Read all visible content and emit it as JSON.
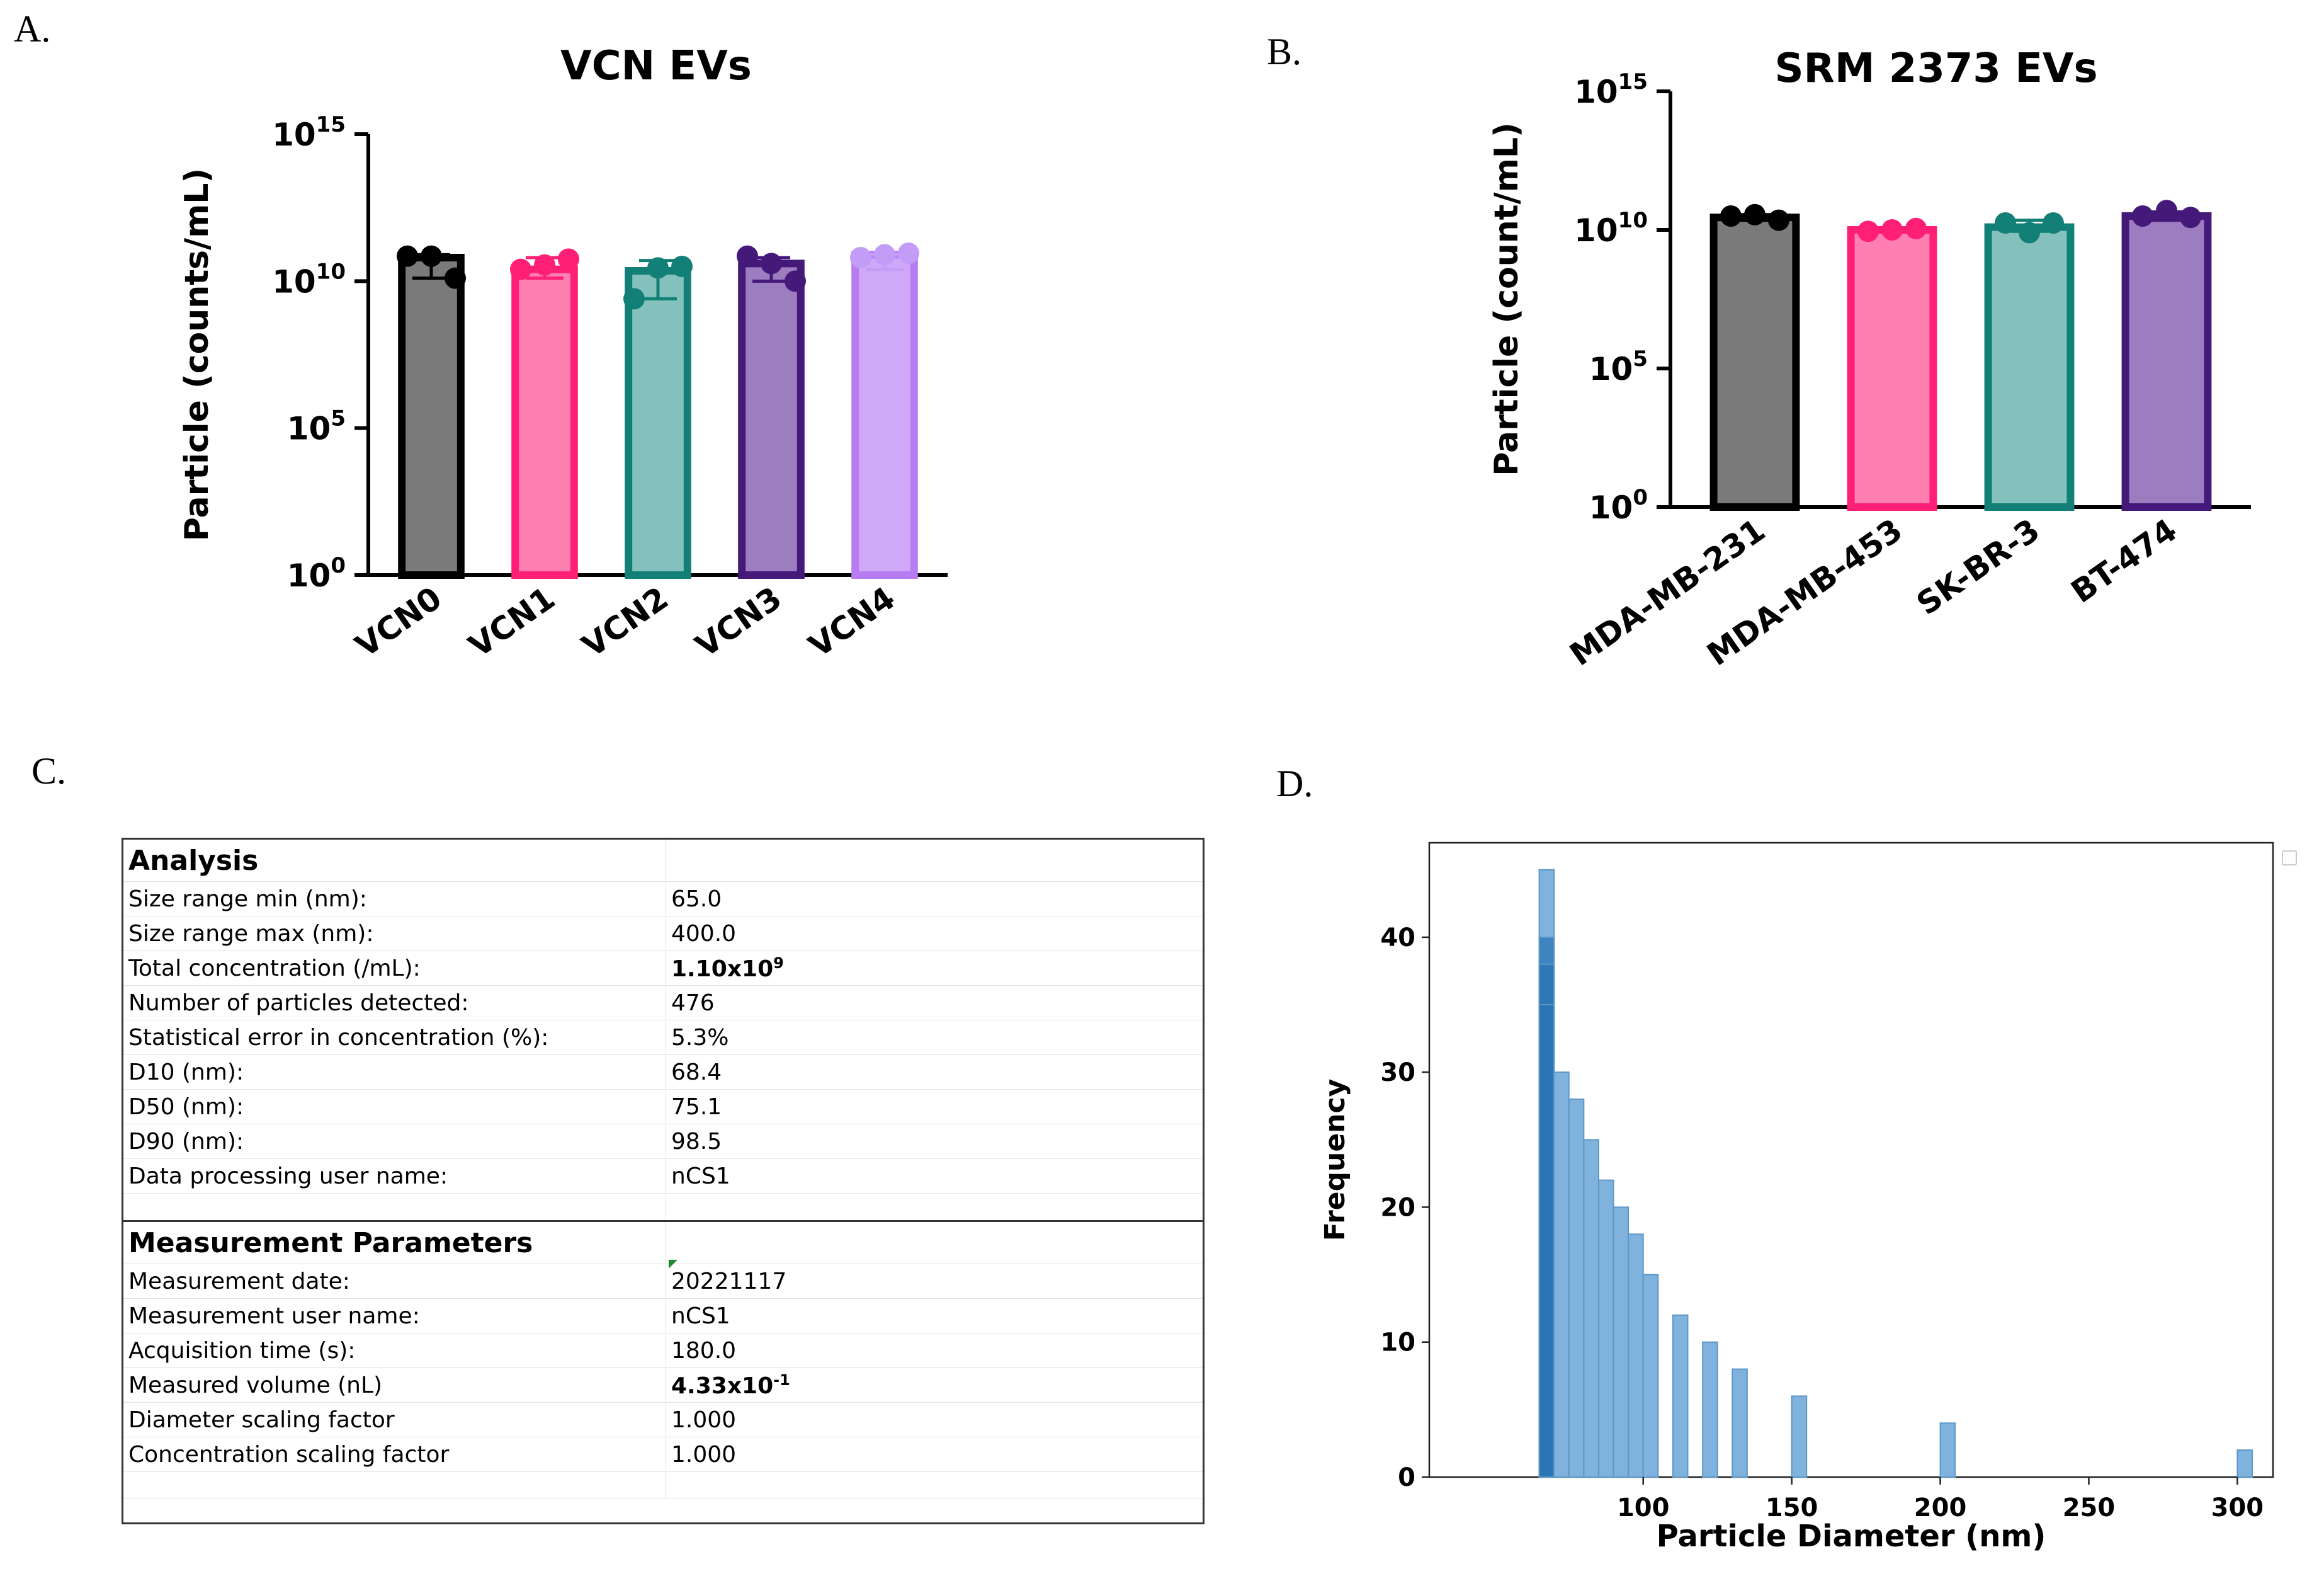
{
  "panels": {
    "a": "A.",
    "b": "B.",
    "c": "C.",
    "d": "D."
  },
  "chart_data": [
    {
      "id": "A",
      "type": "bar",
      "title": "VCN EVs",
      "ylabel": "Particle (counts/mL)",
      "yscale": "log",
      "ylim_exp": [
        0,
        15
      ],
      "yticks": [
        {
          "exp": 0,
          "base": "10",
          "sup": "0"
        },
        {
          "exp": 5,
          "base": "10",
          "sup": "5"
        },
        {
          "exp": 10,
          "base": "10",
          "sup": "10"
        },
        {
          "exp": 15,
          "base": "10",
          "sup": "15"
        }
      ],
      "categories": [
        "VCN0",
        "VCN1",
        "VCN2",
        "VCN3",
        "VCN4"
      ],
      "values_exp": [
        10.8,
        10.4,
        10.35,
        10.6,
        10.9
      ],
      "error_low_exp": [
        10.1,
        10.1,
        9.4,
        10.0,
        10.4
      ],
      "error_high_exp": [
        10.9,
        10.8,
        10.7,
        10.8,
        10.9
      ],
      "points_exp": [
        [
          10.85,
          10.85,
          10.1
        ],
        [
          10.4,
          10.55,
          10.75
        ],
        [
          9.4,
          10.45,
          10.5
        ],
        [
          10.85,
          10.6,
          10.0
        ],
        [
          10.8,
          10.9,
          10.95
        ]
      ],
      "colors": [
        "#7a7a7a",
        "#ff7fb0",
        "#84c1bd",
        "#9b7dc0",
        "#cfa8f7"
      ],
      "edge_colors": [
        "#000000",
        "#ff1f77",
        "#138078",
        "#44197a",
        "#b77cf2"
      ],
      "point_colors": [
        "#000000",
        "#ff1f77",
        "#138078",
        "#44197a",
        "#c39cf7"
      ]
    },
    {
      "id": "B",
      "type": "bar",
      "title": "SRM 2373 EVs",
      "ylabel": "Particle (count/mL)",
      "yscale": "log",
      "ylim_exp": [
        0,
        15
      ],
      "yticks": [
        {
          "exp": 0,
          "base": "10",
          "sup": "0"
        },
        {
          "exp": 5,
          "base": "10",
          "sup": "5"
        },
        {
          "exp": 10,
          "base": "10",
          "sup": "10"
        },
        {
          "exp": 15,
          "base": "10",
          "sup": "15"
        }
      ],
      "categories": [
        "MDA-MB-231",
        "MDA-MB-453",
        "SK-BR-3",
        "BT-474"
      ],
      "values_exp": [
        10.45,
        10.0,
        10.1,
        10.5
      ],
      "error_low_exp": [
        10.35,
        9.95,
        9.95,
        10.35
      ],
      "error_high_exp": [
        10.55,
        10.05,
        10.35,
        10.65
      ],
      "points_exp": [
        [
          10.5,
          10.55,
          10.35
        ],
        [
          9.95,
          10.0,
          10.05
        ],
        [
          10.25,
          9.9,
          10.25
        ],
        [
          10.5,
          10.7,
          10.45
        ]
      ],
      "colors": [
        "#7a7a7a",
        "#ff7fb0",
        "#84c1bd",
        "#9b7dc0"
      ],
      "edge_colors": [
        "#000000",
        "#ff1f77",
        "#138078",
        "#44197a"
      ],
      "point_colors": [
        "#000000",
        "#ff1f77",
        "#138078",
        "#44197a"
      ]
    },
    {
      "id": "D",
      "type": "bar",
      "subtype": "histogram",
      "title": "",
      "xlabel": "Particle Diameter (nm)",
      "ylabel": "Frequency",
      "xlim": [
        28,
        312
      ],
      "ylim": [
        0,
        47
      ],
      "xticks": [
        100,
        150,
        200,
        250,
        300
      ],
      "yticks": [
        0,
        10,
        20,
        30,
        40
      ],
      "bin_width": 5,
      "bins": [
        {
          "x": 65,
          "value": 45,
          "dark": false
        },
        {
          "x": 65,
          "value": 40,
          "dark": true
        },
        {
          "x": 65,
          "value": 38,
          "dark": true
        },
        {
          "x": 65,
          "value": 35,
          "dark": true
        },
        {
          "x": 70,
          "value": 30,
          "dark": false
        },
        {
          "x": 75,
          "value": 28,
          "dark": false
        },
        {
          "x": 80,
          "value": 25,
          "dark": false
        },
        {
          "x": 85,
          "value": 22,
          "dark": false
        },
        {
          "x": 90,
          "value": 20,
          "dark": false
        },
        {
          "x": 95,
          "value": 18,
          "dark": false
        },
        {
          "x": 100,
          "value": 15,
          "dark": false
        },
        {
          "x": 110,
          "value": 12,
          "dark": false
        },
        {
          "x": 120,
          "value": 10,
          "dark": false
        },
        {
          "x": 130,
          "value": 8,
          "dark": false
        },
        {
          "x": 150,
          "value": 6,
          "dark": false
        },
        {
          "x": 200,
          "value": 4,
          "dark": false
        },
        {
          "x": 300,
          "value": 2,
          "dark": false
        }
      ],
      "color": "#7fb2dc",
      "edge_color": "#5d97c7",
      "dark_color": "#2a74b5"
    }
  ],
  "table": {
    "analysis": {
      "title": "Analysis",
      "rows": [
        {
          "label": "Size range min (nm):",
          "value": "65.0"
        },
        {
          "label": "Size range max (nm):",
          "value": "400.0"
        },
        {
          "label": "Total concentration (/mL):",
          "value": "1.10x10",
          "sup": "9",
          "bold": true
        },
        {
          "label": "Number of particles detected:",
          "value": "476"
        },
        {
          "label": "Statistical error in concentration (%):",
          "value": "5.3%"
        },
        {
          "label": "D10 (nm):",
          "value": "68.4"
        },
        {
          "label": "D50 (nm):",
          "value": "75.1"
        },
        {
          "label": "D90 (nm):",
          "value": "98.5"
        },
        {
          "label": "Data processing user name:",
          "value": "nCS1"
        }
      ]
    },
    "measurement": {
      "title": "Measurement Parameters",
      "rows": [
        {
          "label": "Measurement date:",
          "value": "20221117"
        },
        {
          "label": "Measurement user name:",
          "value": "nCS1"
        },
        {
          "label": "Acquisition time (s):",
          "value": "180.0"
        },
        {
          "label": "Measured volume (nL)",
          "value": "4.33x10",
          "sup": "-1",
          "bold": true
        },
        {
          "label": "Diameter scaling factor",
          "value": "1.000"
        },
        {
          "label": "Concentration scaling factor",
          "value": "1.000"
        }
      ]
    }
  }
}
